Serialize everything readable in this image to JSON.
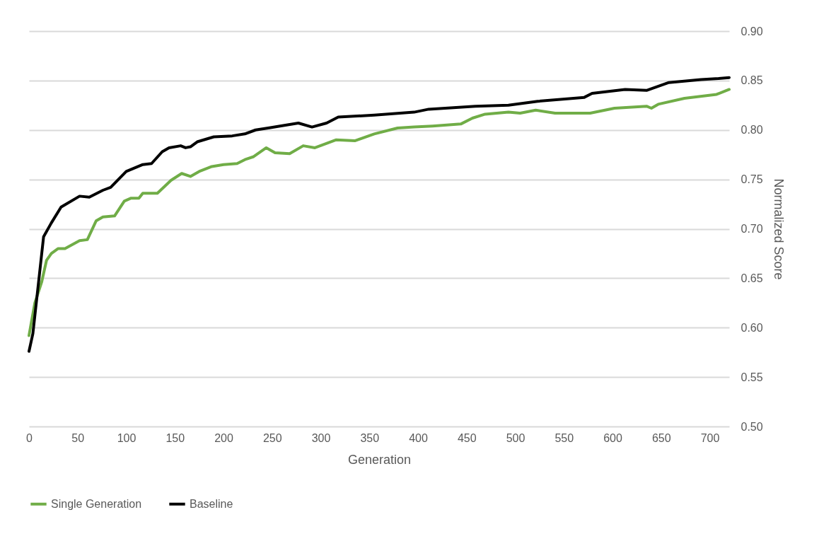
{
  "chart_data": {
    "type": "line",
    "xlabel": "Generation",
    "ylabel": "Normalized Score",
    "xlim": [
      0,
      720
    ],
    "xticks": [
      0,
      50,
      100,
      150,
      200,
      250,
      300,
      350,
      400,
      450,
      500,
      550,
      600,
      650,
      700
    ],
    "ylim": [
      0.5,
      0.9
    ],
    "yticks": [
      {
        "value": 0.5,
        "label": "0.50"
      },
      0.55,
      {
        "value": 0.6,
        "label": "0.60"
      },
      0.65,
      {
        "value": 0.7,
        "label": "0.70"
      },
      0.75,
      {
        "value": 0.8,
        "label": "0.80"
      },
      0.85,
      {
        "value": 0.9,
        "label": "0.90"
      }
    ],
    "grid": "y",
    "legend": "bottom",
    "line_style": "solid",
    "series": [
      {
        "name": "Single Generation",
        "color": "#70ad47",
        "x": [
          0,
          6,
          13,
          18,
          23,
          30,
          37,
          52,
          60,
          69,
          76,
          88,
          98,
          105,
          113,
          117,
          132,
          146,
          157,
          166,
          175,
          188,
          200,
          214,
          222,
          231,
          244,
          253,
          268,
          282,
          294,
          316,
          335,
          355,
          379,
          396,
          415,
          444,
          456,
          469,
          493,
          505,
          521,
          541,
          577,
          602,
          635,
          640,
          647,
          674,
          707,
          720
        ],
        "values": [
          0.592,
          0.625,
          0.646,
          0.668,
          0.675,
          0.68,
          0.68,
          0.688,
          0.689,
          0.708,
          0.712,
          0.713,
          0.728,
          0.731,
          0.731,
          0.736,
          0.736,
          0.749,
          0.756,
          0.753,
          0.758,
          0.763,
          0.765,
          0.766,
          0.77,
          0.773,
          0.782,
          0.777,
          0.776,
          0.784,
          0.782,
          0.79,
          0.789,
          0.796,
          0.802,
          0.803,
          0.804,
          0.806,
          0.812,
          0.816,
          0.818,
          0.817,
          0.82,
          0.817,
          0.817,
          0.822,
          0.824,
          0.822,
          0.826,
          0.832,
          0.836,
          0.841
        ]
      },
      {
        "name": "Baseline",
        "color": "#000000",
        "x": [
          0,
          4,
          15,
          23,
          33,
          52,
          62,
          76,
          84,
          100,
          117,
          126,
          137,
          144,
          156,
          161,
          166,
          173,
          190,
          209,
          222,
          233,
          246,
          277,
          291,
          306,
          318,
          355,
          396,
          411,
          459,
          493,
          523,
          571,
          579,
          613,
          635,
          658,
          691,
          709,
          720
        ],
        "values": [
          0.576,
          0.594,
          0.692,
          0.706,
          0.722,
          0.733,
          0.732,
          0.739,
          0.742,
          0.758,
          0.765,
          0.766,
          0.778,
          0.782,
          0.784,
          0.782,
          0.783,
          0.788,
          0.793,
          0.794,
          0.796,
          0.8,
          0.802,
          0.807,
          0.803,
          0.807,
          0.813,
          0.815,
          0.818,
          0.821,
          0.824,
          0.825,
          0.829,
          0.833,
          0.837,
          0.841,
          0.84,
          0.848,
          0.851,
          0.852,
          0.853
        ]
      }
    ]
  }
}
